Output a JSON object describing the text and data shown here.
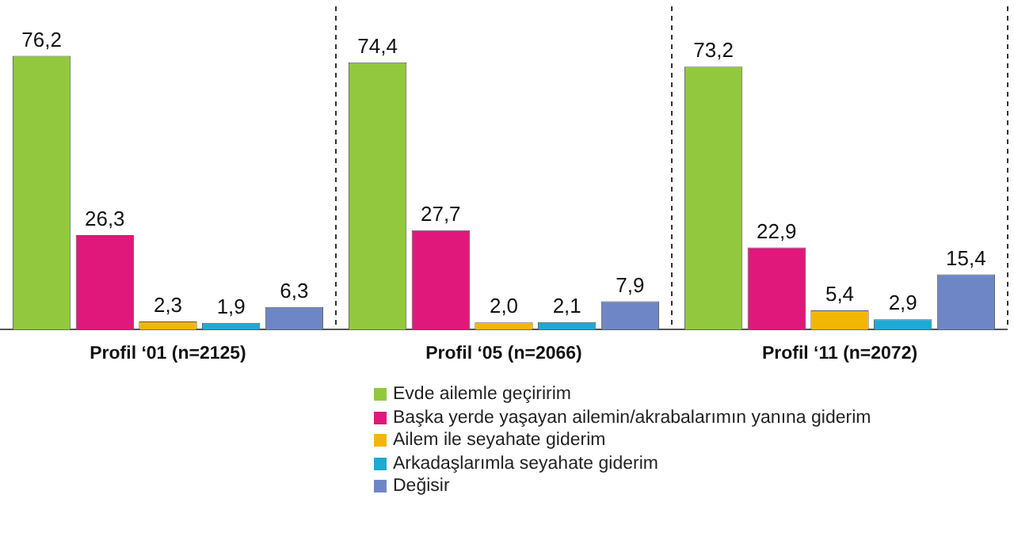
{
  "chart_data": {
    "type": "bar",
    "categories": [
      "Profil ‘01 (n=2125)",
      "Profil ‘05 (n=2066)",
      "Profil ‘11 (n=2072)"
    ],
    "series": [
      {
        "name": "Evde ailemle geçiririm",
        "color": "#92c83e",
        "values": [
          76.2,
          74.4,
          73.2
        ],
        "value_labels": [
          "76,2",
          "74,4",
          "73,2"
        ]
      },
      {
        "name": "Başka yerde yaşayan ailemin/akrabalarımın yanına giderim",
        "color": "#e0187c",
        "values": [
          26.3,
          27.7,
          22.9
        ],
        "value_labels": [
          "26,3",
          "27,7",
          "22,9"
        ]
      },
      {
        "name": "Ailem ile seyahate giderim",
        "color": "#f2b705",
        "values": [
          2.3,
          2.0,
          5.4
        ],
        "value_labels": [
          "2,3",
          "2,0",
          "5,4"
        ]
      },
      {
        "name": "Arkadaşlarımla seyahate giderim",
        "color": "#1fa9d3",
        "values": [
          1.9,
          2.1,
          2.9
        ],
        "value_labels": [
          "1,9",
          "2,1",
          "2,9"
        ]
      },
      {
        "name": "Değisir",
        "color": "#6f86c6",
        "values": [
          6.3,
          7.9,
          15.4
        ],
        "value_labels": [
          "6,3",
          "7,9",
          "15,4"
        ]
      }
    ],
    "grid": "x",
    "legend": "bottom"
  }
}
